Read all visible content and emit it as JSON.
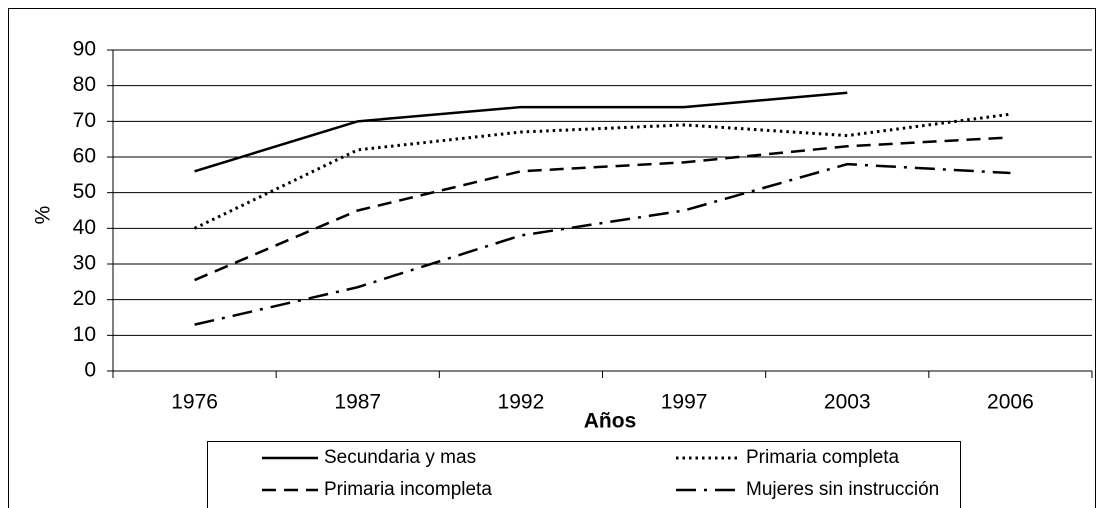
{
  "chart_data": {
    "type": "line",
    "x_label": "Años",
    "y_label": "%",
    "categories": [
      "1976",
      "1987",
      "1992",
      "1997",
      "2003",
      "2006"
    ],
    "series": [
      {
        "name": "Secundaria y mas",
        "color": "#000000",
        "dash": "solid",
        "values": [
          56,
          70,
          74,
          74,
          78,
          null
        ]
      },
      {
        "name": "Primaria completa",
        "color": "#000000",
        "dash": "dotted",
        "values": [
          40,
          62,
          67,
          69,
          66,
          72
        ]
      },
      {
        "name": "Primaria incompleta",
        "color": "#000000",
        "dash": "dashed",
        "values": [
          25.5,
          45,
          56,
          58.5,
          63,
          65.5
        ]
      },
      {
        "name": "Mujeres sin instrucción",
        "color": "#000000",
        "dash": "dashdot",
        "values": [
          13,
          23.5,
          38,
          45,
          58,
          55.5
        ]
      }
    ],
    "ylim": [
      0,
      90
    ],
    "yticks": [
      0,
      10,
      20,
      30,
      40,
      50,
      60,
      70,
      80,
      90
    ],
    "grid": true
  }
}
